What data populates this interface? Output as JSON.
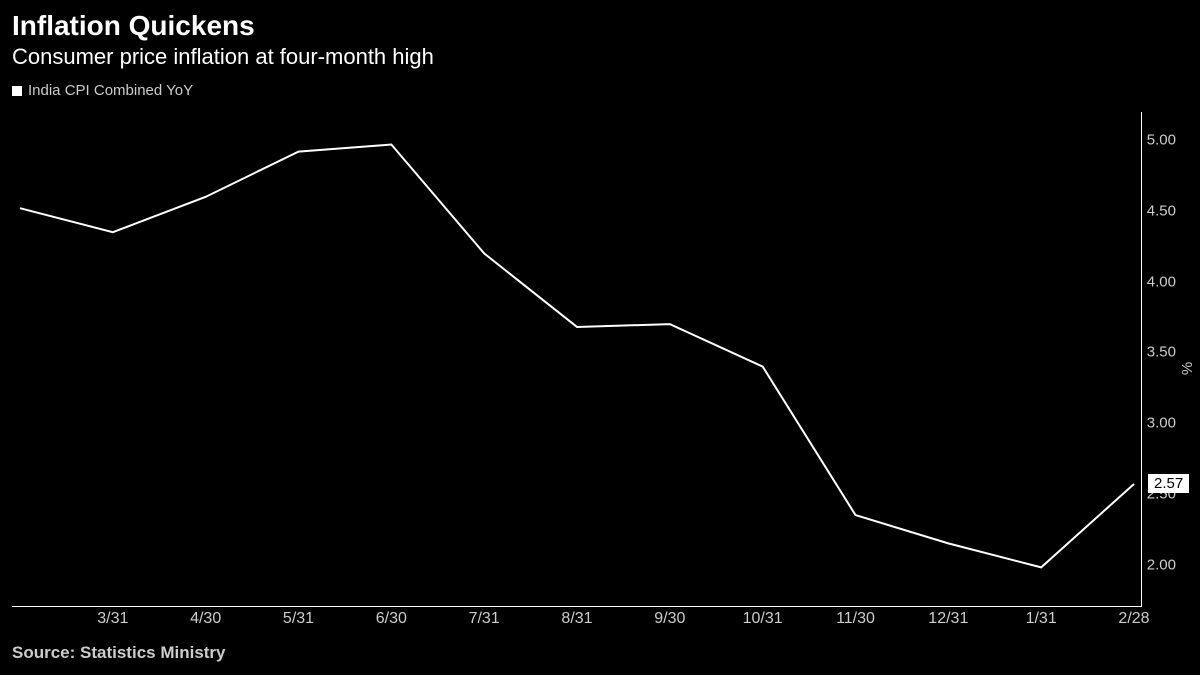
{
  "title": "Inflation Quickens",
  "subtitle": "Consumer price inflation at four-month high",
  "legend": {
    "series_label": "India CPI Combined YoY",
    "marker_color": "#ffffff"
  },
  "chart": {
    "type": "line",
    "background_color": "#000000",
    "line_color": "#ffffff",
    "line_width": 2,
    "grid_color": "#333333",
    "tick_color": "#ffffff",
    "ylim": [
      1.7,
      5.2
    ],
    "yticks": [
      2.0,
      2.5,
      3.0,
      3.5,
      4.0,
      4.5,
      5.0
    ],
    "ytick_labels": [
      "2.00",
      "2.50",
      "3.00",
      "3.50",
      "4.00",
      "4.50",
      "5.00"
    ],
    "ylabel": "%",
    "x_categories": [
      "",
      "3/31",
      "4/30",
      "5/31",
      "6/30",
      "7/31",
      "8/31",
      "9/30",
      "10/31",
      "11/30",
      "12/31",
      "1/31",
      "2/28"
    ],
    "values": [
      4.52,
      4.35,
      4.6,
      4.92,
      4.97,
      4.2,
      3.68,
      3.7,
      3.4,
      2.35,
      2.15,
      1.98,
      2.57
    ],
    "callout": {
      "label": "2.57",
      "value": 2.57
    }
  },
  "source": "Source: Statistics Ministry",
  "colors": {
    "text": "#ffffff",
    "muted_text": "#cccccc",
    "background": "#000000"
  }
}
